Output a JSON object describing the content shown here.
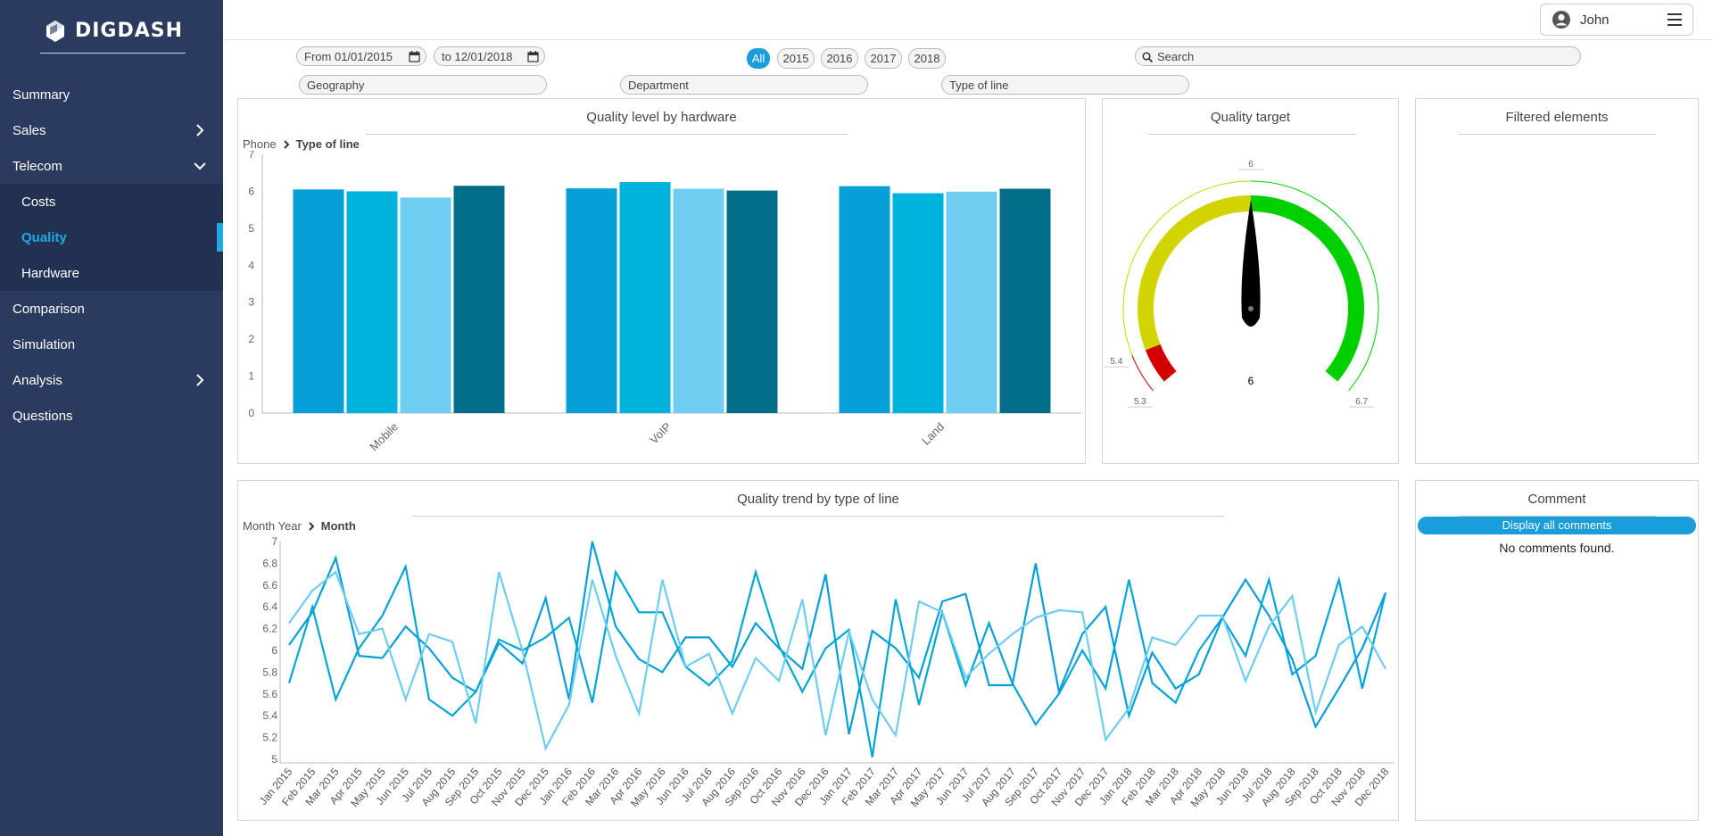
{
  "app": {
    "logo_text": "DIGDASH",
    "user_name": "John"
  },
  "sidebar": {
    "items": [
      {
        "label": "Summary"
      },
      {
        "label": "Sales",
        "icon": "chevron-right-icon"
      },
      {
        "label": "Telecom",
        "icon": "chevron-down-icon"
      },
      {
        "label": "Costs"
      },
      {
        "label": "Quality"
      },
      {
        "label": "Hardware"
      },
      {
        "label": "Comparison"
      },
      {
        "label": "Simulation"
      },
      {
        "label": "Analysis",
        "icon": "chevron-right-icon"
      },
      {
        "label": "Questions"
      }
    ],
    "active": "Quality",
    "colors": {
      "background": "#2b3a5f",
      "submenu": "#223152",
      "accent": "#1fa9e1"
    }
  },
  "filters": {
    "from_label": "From",
    "from_value": "01/01/2015",
    "to_label": "to",
    "to_value": "12/01/2018",
    "years": [
      "All",
      "2015",
      "2016",
      "2017",
      "2018"
    ],
    "selected_year": "All",
    "search_placeholder": "Search",
    "geography": "Geography",
    "department": "Department",
    "type_of_line": "Type of line"
  },
  "panels": {
    "hardware": {
      "title": "Quality level by hardware",
      "crumb_root": "Phone",
      "crumb_current": "Type of line"
    },
    "target": {
      "title": "Quality target"
    },
    "filtered": {
      "title": "Filtered elements"
    },
    "trend": {
      "title": "Quality trend by type of line",
      "crumb_root": "Month Year",
      "crumb_current": "Month"
    },
    "comment": {
      "title": "Comment",
      "button": "Display all comments",
      "empty": "No comments found."
    }
  },
  "chart_data": [
    {
      "type": "bar",
      "title": "Quality level by hardware",
      "categories": [
        "Mobile",
        "VoIP",
        "Land"
      ],
      "series": [
        {
          "values": [
            6.05,
            6.08,
            6.14
          ],
          "color": "#069fd8"
        },
        {
          "values": [
            6.0,
            6.25,
            5.95
          ],
          "color": "#00b3dc"
        },
        {
          "values": [
            5.83,
            6.07,
            5.99
          ],
          "color": "#6ecdf0"
        },
        {
          "values": [
            6.15,
            6.02,
            6.07
          ],
          "color": "#036e8a"
        }
      ],
      "ylim": [
        0,
        7
      ],
      "yticks": [
        0,
        1,
        2,
        3,
        4,
        5,
        6,
        7
      ],
      "grid": false
    },
    {
      "type": "gauge",
      "title": "Quality target",
      "value": 6,
      "value_label": "6",
      "min": 5.3,
      "max": 6.7,
      "bands": [
        {
          "from": 5.3,
          "to": 5.4,
          "color": "#d40000"
        },
        {
          "from": 5.4,
          "to": 6.0,
          "color": "#d2d400"
        },
        {
          "from": 6.0,
          "to": 6.7,
          "color": "#00d000"
        }
      ],
      "tick_labels": [
        "5.3",
        "5.4",
        "6",
        "6.7"
      ]
    },
    {
      "type": "line",
      "title": "Quality trend by type of line",
      "x": [
        "Jan 2015",
        "Feb 2015",
        "Mar 2015",
        "Apr 2015",
        "May 2015",
        "Jun 2015",
        "Jul 2015",
        "Aug 2015",
        "Sep 2015",
        "Oct 2015",
        "Nov 2015",
        "Dec 2015",
        "Jan 2016",
        "Feb 2016",
        "Mar 2016",
        "Apr 2016",
        "May 2016",
        "Jun 2016",
        "Jul 2016",
        "Aug 2016",
        "Sep 2016",
        "Oct 2016",
        "Nov 2016",
        "Dec 2016",
        "Jan 2017",
        "Feb 2017",
        "Mar 2017",
        "Apr 2017",
        "May 2017",
        "Jun 2017",
        "Jul 2017",
        "Aug 2017",
        "Sep 2017",
        "Oct 2017",
        "Nov 2017",
        "Dec 2017",
        "Jan 2018",
        "Feb 2018",
        "Mar 2018",
        "Apr 2018",
        "May 2018",
        "Jun 2018",
        "Jul 2018",
        "Aug 2018",
        "Sep 2018",
        "Oct 2018",
        "Nov 2018",
        "Dec 2018"
      ],
      "series": [
        {
          "color": "#069fd8",
          "values": [
            6.05,
            6.35,
            6.85,
            5.95,
            5.93,
            6.22,
            6.02,
            5.75,
            5.62,
            6.07,
            5.88,
            6.48,
            5.55,
            7.0,
            6.22,
            5.92,
            5.8,
            6.12,
            6.12,
            5.85,
            6.25,
            6.02,
            5.83,
            6.7,
            5.23,
            6.18,
            6.02,
            5.75,
            6.45,
            6.52,
            5.68,
            5.68,
            6.8,
            5.62,
            6.15,
            6.4,
            5.4,
            5.98,
            5.65,
            5.78,
            6.3,
            6.65,
            6.32,
            5.92,
            5.3,
            5.65,
            6.02,
            6.53
          ]
        },
        {
          "color": "#00a7d6",
          "values": [
            5.7,
            6.4,
            5.55,
            6.02,
            6.32,
            6.77,
            5.55,
            5.4,
            5.62,
            6.1,
            6.0,
            6.12,
            6.3,
            5.52,
            6.72,
            6.35,
            6.35,
            5.85,
            5.68,
            5.9,
            6.72,
            6.04,
            5.62,
            6.02,
            6.19,
            5.02,
            6.47,
            5.5,
            6.35,
            5.68,
            6.25,
            5.7,
            5.32,
            5.6,
            6.0,
            5.65,
            6.65,
            5.7,
            5.52,
            6.0,
            6.3,
            5.95,
            6.65,
            5.78,
            5.95,
            6.65,
            5.65,
            6.53
          ]
        },
        {
          "color": "#6ecdf0",
          "values": [
            6.25,
            6.55,
            6.72,
            6.15,
            6.2,
            5.55,
            6.15,
            6.08,
            5.33,
            6.72,
            6.0,
            5.1,
            5.5,
            6.65,
            5.95,
            5.42,
            6.65,
            5.85,
            5.97,
            5.42,
            5.93,
            5.72,
            6.47,
            5.22,
            6.17,
            5.55,
            5.22,
            6.45,
            6.35,
            5.75,
            5.97,
            6.15,
            6.3,
            6.37,
            6.35,
            5.18,
            5.47,
            6.12,
            6.05,
            6.32,
            6.32,
            5.72,
            6.22,
            6.5,
            5.43,
            6.05,
            6.22,
            5.83
          ]
        }
      ],
      "ylim": [
        5,
        7
      ],
      "yticks": [
        "5",
        "5.2",
        "5.4",
        "5.6",
        "5.8",
        "6",
        "6.2",
        "6.4",
        "6.6",
        "6.8",
        "7"
      ],
      "grid": false
    }
  ]
}
